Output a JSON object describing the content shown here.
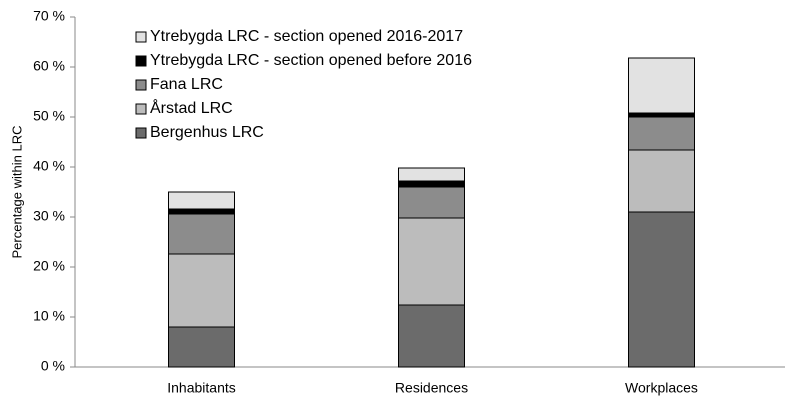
{
  "chart_data": {
    "type": "stacked_bar",
    "y_label": "Percentage within LRC",
    "categories": [
      "Inhabitants",
      "Residences",
      "Workplaces"
    ],
    "series": [
      {
        "name": "Bergenhus LRC",
        "color": "#6b6b6b",
        "values": [
          8,
          12.4,
          31
        ]
      },
      {
        "name": "Årstad LRC",
        "color": "#bcbcbc",
        "values": [
          14.6,
          17.4,
          12.4
        ]
      },
      {
        "name": "Fana LRC",
        "color": "#8c8c8c",
        "values": [
          8,
          6.2,
          6.6
        ]
      },
      {
        "name": "Ytrebygda LRC - section opened before 2016",
        "color": "#000000",
        "values": [
          1,
          1.2,
          0.8
        ]
      },
      {
        "name": "Ytrebygda LRC - section opened 2016-2017",
        "color": "#e2e2e2",
        "values": [
          3.4,
          2.6,
          11
        ]
      }
    ],
    "ylim": [
      0,
      70
    ],
    "yticks": [
      {
        "value": 0,
        "label": "0 %"
      },
      {
        "value": 10,
        "label": "10 %"
      },
      {
        "value": 20,
        "label": "20 %"
      },
      {
        "value": 30,
        "label": "30 %"
      },
      {
        "value": 40,
        "label": "40 %"
      },
      {
        "value": 50,
        "label": "50 %"
      },
      {
        "value": 60,
        "label": "60 %"
      },
      {
        "value": 70,
        "label": "70 %"
      }
    ],
    "grid": false,
    "legend": "upper left"
  }
}
